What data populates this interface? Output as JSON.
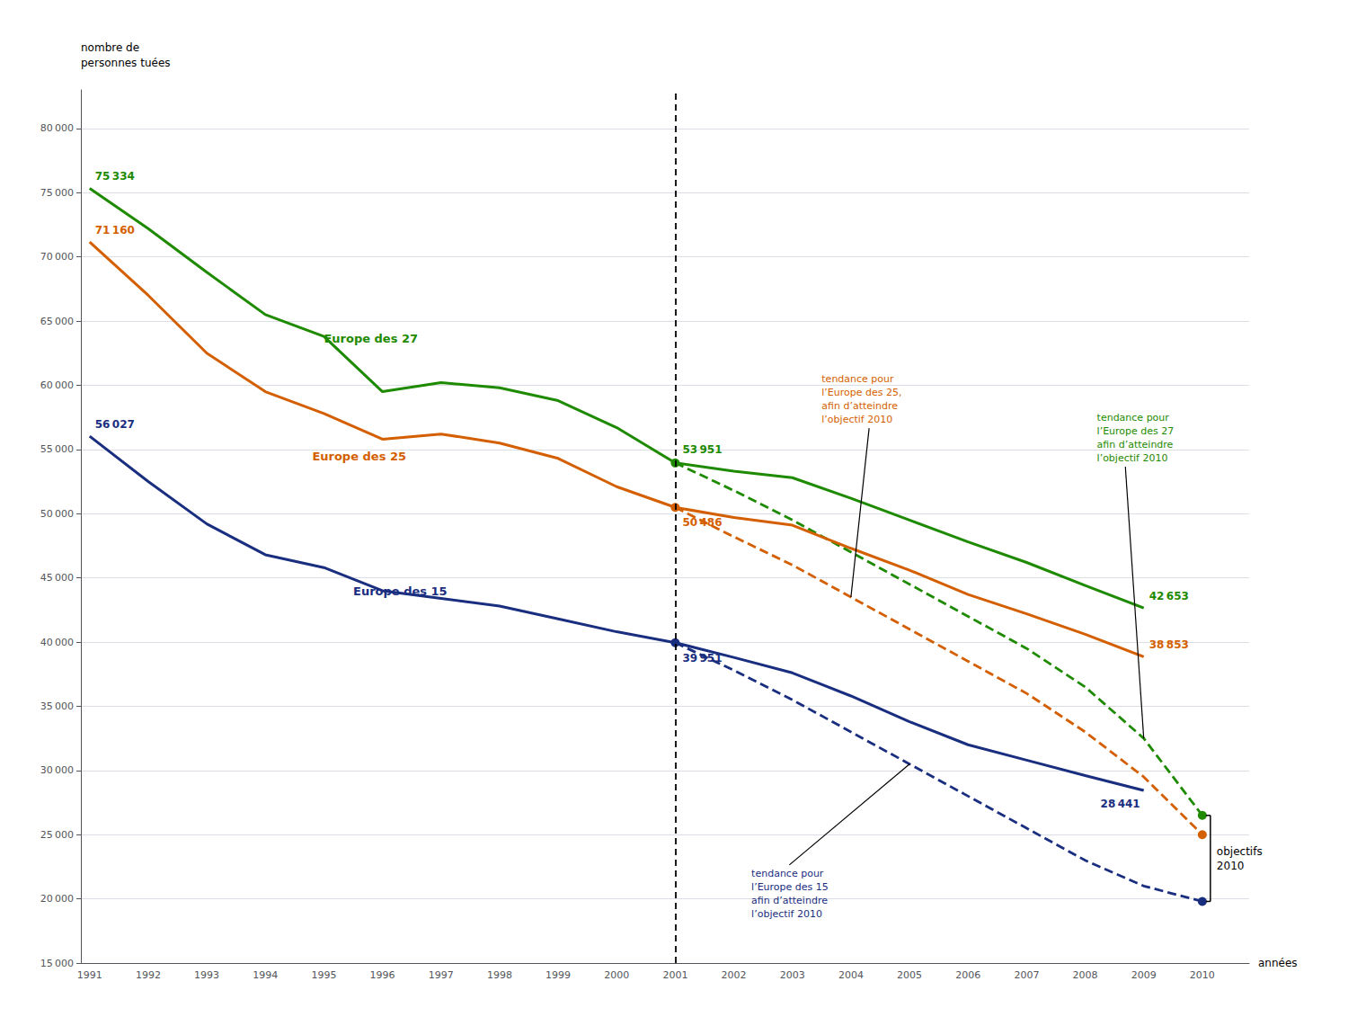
{
  "chart_data": {
    "type": "line",
    "ylabel": "nombre de\npersonnes tuées",
    "xlabel": "années",
    "xlim": [
      1990.85,
      2010.8
    ],
    "xticks": [
      1991,
      1992,
      1993,
      1994,
      1995,
      1996,
      1997,
      1998,
      1999,
      2000,
      2001,
      2002,
      2003,
      2004,
      2005,
      2006,
      2007,
      2008,
      2009,
      2010
    ],
    "ylim": [
      15000,
      83000
    ],
    "yticks": [
      {
        "value": 15000,
        "label": "15 000"
      },
      {
        "value": 20000,
        "label": "20 000"
      },
      {
        "value": 25000,
        "label": "25 000"
      },
      {
        "value": 30000,
        "label": "30 000"
      },
      {
        "value": 35000,
        "label": "35 000"
      },
      {
        "value": 40000,
        "label": "40 000"
      },
      {
        "value": 45000,
        "label": "45 000"
      },
      {
        "value": 50000,
        "label": "50 000"
      },
      {
        "value": 55000,
        "label": "55 000"
      },
      {
        "value": 60000,
        "label": "60 000"
      },
      {
        "value": 65000,
        "label": "65 000"
      },
      {
        "value": 70000,
        "label": "70 000"
      },
      {
        "value": 75000,
        "label": "75 000"
      },
      {
        "value": 80000,
        "label": "80 000"
      }
    ],
    "grid": true,
    "data_labels": true,
    "series": [
      {
        "name": "Europe des 27",
        "color": "#1e8a00",
        "line_style": "solid",
        "x": [
          1991,
          1992,
          1993,
          1994,
          1995,
          1996,
          1997,
          1998,
          1999,
          2000,
          2001,
          2002,
          2003,
          2004,
          2005,
          2006,
          2007,
          2008,
          2009
        ],
        "values": [
          75334,
          72200,
          68800,
          65500,
          63800,
          59500,
          60200,
          59800,
          58800,
          56700,
          53951,
          53300,
          52800,
          51200,
          49500,
          47800,
          46200,
          44400,
          42653
        ],
        "value_labels": [
          "75 334",
          null,
          null,
          null,
          null,
          null,
          null,
          null,
          null,
          null,
          "53 951",
          null,
          null,
          null,
          null,
          null,
          null,
          null,
          "42 653"
        ]
      },
      {
        "name": "Europe des 25",
        "color": "#d45f00",
        "line_style": "solid",
        "x": [
          1991,
          1992,
          1993,
          1994,
          1995,
          1996,
          1997,
          1998,
          1999,
          2000,
          2001,
          2002,
          2003,
          2004,
          2005,
          2006,
          2007,
          2008,
          2009
        ],
        "values": [
          71160,
          67000,
          62500,
          59500,
          57800,
          55800,
          56200,
          55500,
          54300,
          52100,
          50486,
          49700,
          49100,
          47300,
          45600,
          43700,
          42200,
          40600,
          38853
        ],
        "value_labels": [
          "71 160",
          null,
          null,
          null,
          null,
          null,
          null,
          null,
          null,
          null,
          "50 486",
          null,
          null,
          null,
          null,
          null,
          null,
          null,
          "38 853"
        ]
      },
      {
        "name": "Europe des 15",
        "color": "#1a2e80",
        "line_style": "solid",
        "x": [
          1991,
          1992,
          1993,
          1994,
          1995,
          1996,
          1997,
          1998,
          1999,
          2000,
          2001,
          2002,
          2003,
          2004,
          2005,
          2006,
          2007,
          2008,
          2009
        ],
        "values": [
          56027,
          52500,
          49200,
          46800,
          45800,
          44000,
          43400,
          42800,
          41800,
          40800,
          39951,
          38800,
          37600,
          35800,
          33800,
          32000,
          30800,
          29600,
          28441
        ],
        "value_labels": [
          "56 027",
          null,
          null,
          null,
          null,
          null,
          null,
          null,
          null,
          null,
          "39 951",
          null,
          null,
          null,
          null,
          null,
          null,
          null,
          "28 441"
        ]
      },
      {
        "name": "tendance pour\nl’Europe des 27\nafin d’atteindre\nl’objectif 2010",
        "color": "#1e8a00",
        "line_style": "dashed",
        "marker": "circle",
        "x": [
          2001,
          2002,
          2003,
          2004,
          2005,
          2006,
          2007,
          2008,
          2009,
          2010
        ],
        "values": [
          53951,
          51800,
          49500,
          47000,
          44500,
          42000,
          39500,
          36500,
          32500,
          26500
        ]
      },
      {
        "name": "tendance pour\nl’Europe des 25,\nafin d’atteindre\nl’objectif 2010",
        "color": "#d45f00",
        "line_style": "dashed",
        "marker": "circle",
        "x": [
          2001,
          2002,
          2003,
          2004,
          2005,
          2006,
          2007,
          2008,
          2009,
          2010
        ],
        "values": [
          50486,
          48200,
          46000,
          43500,
          41000,
          38500,
          36000,
          33000,
          29500,
          25000
        ]
      },
      {
        "name": "tendance pour\nl’Europe des 15\nafin d’atteindre\nl’objectif 2010",
        "color": "#1a2e80",
        "line_style": "dashed",
        "marker": "circle",
        "x": [
          2001,
          2002,
          2003,
          2004,
          2005,
          2006,
          2007,
          2008,
          2009,
          2010
        ],
        "values": [
          39951,
          37800,
          35500,
          33000,
          30500,
          28000,
          25500,
          23000,
          21000,
          19800
        ]
      }
    ],
    "annotations": [
      {
        "text": "objectifs\n2010"
      }
    ]
  }
}
